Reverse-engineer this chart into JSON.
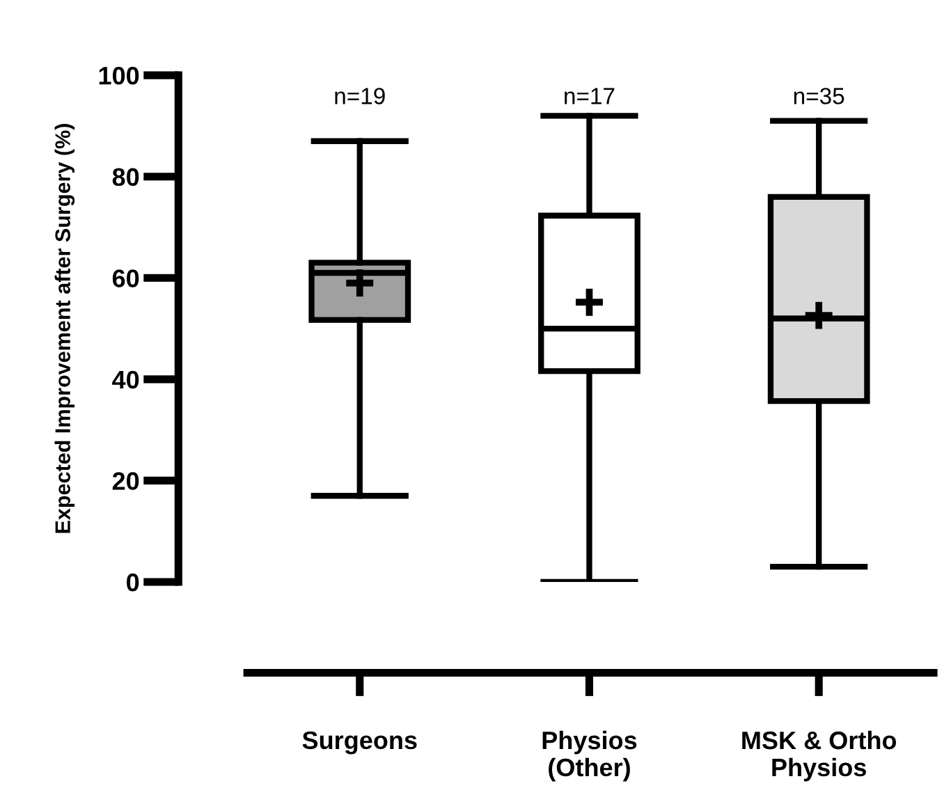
{
  "chart_data": {
    "type": "box",
    "ylabel": "Expected Improvement after Surgery (%)",
    "categories": [
      "Surgeons",
      "Physios\n(Other)",
      "MSK & Ortho\nPhysios"
    ],
    "colors": [
      "#a0a0a0",
      "#ffffff",
      "#d9d9d9"
    ],
    "boxes": [
      {
        "low": 17,
        "q1": 51.7,
        "median": 61,
        "q3": 63,
        "high": 87,
        "mean": 59
      },
      {
        "low": 0,
        "q1": 41.6,
        "median": 50,
        "q3": 72.3,
        "high": 92,
        "mean": 55.2
      },
      {
        "low": 3,
        "q1": 35.7,
        "median": 52,
        "q3": 76,
        "high": 91,
        "mean": 52.6
      }
    ],
    "ylim": [
      0,
      100
    ],
    "yticks": [
      0,
      20,
      40,
      60,
      80,
      100
    ],
    "annotations": [
      "n=19",
      "n=17",
      "n=35"
    ],
    "grid": false,
    "legend": false
  }
}
